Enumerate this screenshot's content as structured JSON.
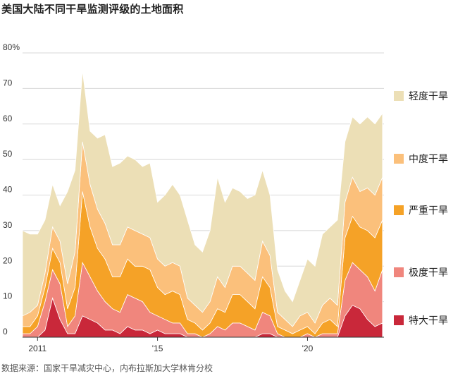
{
  "title": "美国大陆不同干旱监测评级的土地面积",
  "source": "数据来源：国家干旱减灾中心，内布拉斯加大学林肯分校",
  "chart_data": {
    "type": "area",
    "stacked": true,
    "title": "美国大陆不同干旱监测评级的土地面积",
    "xlabel": "",
    "ylabel": "",
    "x": [
      2010.5,
      2010.75,
      2011.0,
      2011.25,
      2011.5,
      2011.75,
      2012.0,
      2012.25,
      2012.5,
      2012.75,
      2013.0,
      2013.25,
      2013.5,
      2013.75,
      2014.0,
      2014.25,
      2014.5,
      2014.75,
      2015.0,
      2015.25,
      2015.5,
      2015.75,
      2016.0,
      2016.25,
      2016.5,
      2016.75,
      2017.0,
      2017.25,
      2017.5,
      2017.75,
      2018.0,
      2018.25,
      2018.5,
      2018.75,
      2019.0,
      2019.25,
      2019.5,
      2019.75,
      2020.0,
      2020.25,
      2020.5,
      2020.75,
      2021.0,
      2021.25,
      2021.5,
      2021.75,
      2022.0,
      2022.25,
      2022.5
    ],
    "xlim": [
      2010.5,
      2022.55
    ],
    "ylim": [
      0,
      80
    ],
    "yticks": [
      0,
      10,
      20,
      30,
      40,
      50,
      60,
      70,
      80
    ],
    "ytick_labels": [
      "0",
      "10",
      "20",
      "30",
      "40",
      "50",
      "60",
      "70",
      "80%"
    ],
    "xticks": [
      2011,
      2015,
      2020
    ],
    "xtick_labels": [
      "2011",
      "'15",
      "'20"
    ],
    "grid": "horizontal",
    "legend_placement": "right",
    "series": [
      {
        "name": "特大干旱",
        "color": "#c9283a",
        "values": [
          0,
          0,
          0,
          2,
          11,
          5,
          1,
          1,
          6,
          5,
          4,
          2,
          2,
          1,
          3,
          2,
          2,
          1,
          2,
          1,
          1,
          1,
          0,
          0,
          0,
          0,
          0,
          0,
          0,
          0,
          0,
          0,
          1,
          1,
          0,
          0,
          0,
          0,
          0,
          0,
          0,
          0,
          0,
          6,
          9,
          8,
          5,
          3,
          4
        ]
      },
      {
        "name": "极度干旱",
        "color": "#f0867d",
        "values": [
          1,
          1,
          3,
          8,
          8,
          10,
          2,
          5,
          15,
          12,
          9,
          8,
          6,
          6,
          9,
          9,
          8,
          6,
          4,
          4,
          3,
          3,
          1,
          1,
          0,
          1,
          3,
          2,
          4,
          4,
          3,
          2,
          6,
          5,
          1,
          0,
          0,
          0,
          1,
          0,
          1,
          1,
          1,
          10,
          12,
          11,
          12,
          10,
          15
        ]
      },
      {
        "name": "严重干旱",
        "color": "#f5a227",
        "values": [
          2,
          2,
          3,
          4,
          6,
          6,
          5,
          8,
          20,
          14,
          12,
          12,
          9,
          10,
          10,
          9,
          10,
          12,
          8,
          7,
          9,
          8,
          4,
          3,
          2,
          3,
          5,
          5,
          8,
          8,
          7,
          6,
          10,
          8,
          2,
          2,
          1,
          2,
          2,
          1,
          3,
          4,
          2,
          12,
          13,
          12,
          13,
          15,
          14
        ]
      },
      {
        "name": "中度干旱",
        "color": "#fbc07b",
        "values": [
          3,
          4,
          3,
          4,
          6,
          6,
          7,
          10,
          14,
          12,
          11,
          10,
          9,
          9,
          9,
          10,
          9,
          9,
          8,
          8,
          8,
          8,
          6,
          5,
          5,
          6,
          9,
          7,
          8,
          8,
          8,
          8,
          10,
          9,
          4,
          3,
          2,
          4,
          4,
          3,
          5,
          6,
          6,
          10,
          11,
          10,
          12,
          12,
          12
        ]
      },
      {
        "name": "轻度干旱",
        "color": "#ecdfb6",
        "values": [
          24,
          22,
          20,
          15,
          12,
          10,
          26,
          23,
          20,
          15,
          20,
          25,
          22,
          23,
          20,
          20,
          19,
          21,
          16,
          20,
          22,
          20,
          22,
          17,
          17,
          20,
          28,
          24,
          22,
          21,
          21,
          24,
          20,
          17,
          12,
          8,
          7,
          10,
          15,
          16,
          20,
          20,
          24,
          17,
          17,
          19,
          20,
          20,
          18
        ]
      }
    ]
  }
}
